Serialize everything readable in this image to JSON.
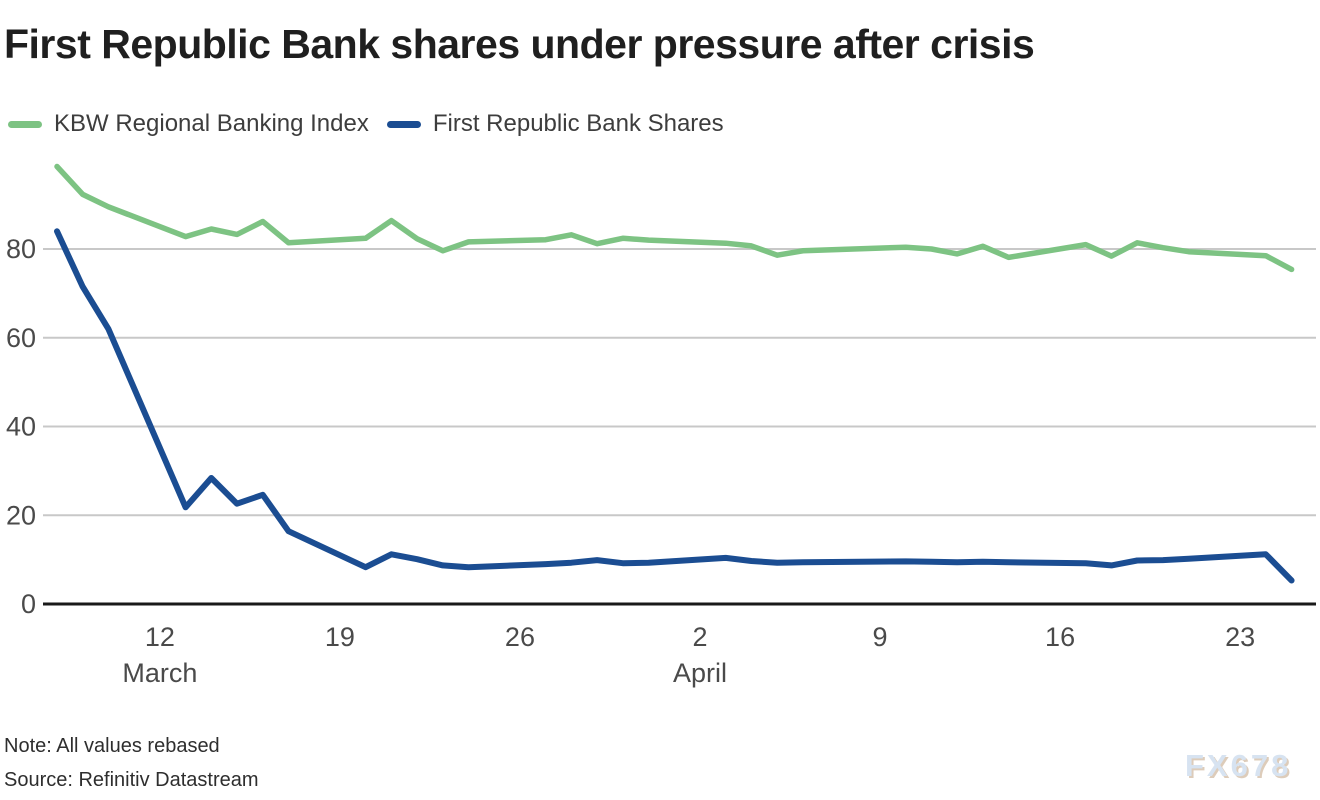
{
  "title": "First Republic Bank shares under pressure after crisis",
  "legend": {
    "items": [
      {
        "label": "KBW Regional Banking Index",
        "color": "#7dc383"
      },
      {
        "label": "First Republic Bank Shares",
        "color": "#1b4d92"
      }
    ]
  },
  "footer": {
    "note": "Note: All values rebased",
    "source": "Source: Refinitiv Datastream"
  },
  "watermark": "FX678",
  "colors": {
    "grid": "#c8c8c8",
    "baseline": "#1a1a1a",
    "axis_text": "#4a4a4a",
    "title_text": "#1f1f1f"
  },
  "chart_data": {
    "type": "line",
    "title": "First Republic Bank shares under pressure after crisis",
    "xlabel": "",
    "ylabel": "",
    "ylim": [
      0,
      100
    ],
    "grid": "horizontal",
    "legend_position": "top-left",
    "x_dates": [
      "Mar 8",
      "Mar 9",
      "Mar 10",
      "Mar 13",
      "Mar 14",
      "Mar 15",
      "Mar 16",
      "Mar 17",
      "Mar 20",
      "Mar 21",
      "Mar 22",
      "Mar 23",
      "Mar 24",
      "Mar 27",
      "Mar 28",
      "Mar 29",
      "Mar 30",
      "Mar 31",
      "Apr 3",
      "Apr 4",
      "Apr 5",
      "Apr 6",
      "Apr 10",
      "Apr 11",
      "Apr 12",
      "Apr 13",
      "Apr 14",
      "Apr 17",
      "Apr 18",
      "Apr 19",
      "Apr 20",
      "Apr 21",
      "Apr 24",
      "Apr 25"
    ],
    "day_offsets": [
      0,
      1,
      2,
      5,
      6,
      7,
      8,
      9,
      12,
      13,
      14,
      15,
      16,
      19,
      20,
      21,
      22,
      23,
      26,
      27,
      28,
      29,
      33,
      34,
      35,
      36,
      37,
      40,
      41,
      42,
      43,
      44,
      47,
      48
    ],
    "series": [
      {
        "name": "KBW Regional Banking Index",
        "color": "#7dc383",
        "stroke_width": 5.5,
        "values": [
          98.6,
          92.3,
          89.5,
          82.8,
          84.5,
          83.3,
          86.2,
          81.4,
          82.4,
          86.4,
          82.3,
          79.6,
          81.6,
          82.1,
          83.2,
          81.2,
          82.4,
          82.0,
          81.3,
          80.7,
          78.6,
          79.6,
          80.4,
          80.0,
          78.9,
          80.6,
          78.1,
          81.0,
          78.4,
          81.4,
          80.3,
          79.4,
          78.5,
          75.4
        ]
      },
      {
        "name": "First Republic Bank Shares",
        "color": "#1b4d92",
        "stroke_width": 6,
        "values": [
          84.0,
          71.5,
          62.0,
          21.8,
          28.4,
          22.6,
          24.6,
          16.4,
          8.3,
          11.2,
          10.1,
          8.7,
          8.3,
          9.0,
          9.3,
          9.9,
          9.2,
          9.3,
          10.4,
          9.7,
          9.3,
          9.4,
          9.6,
          9.5,
          9.4,
          9.5,
          9.4,
          9.2,
          8.7,
          9.8,
          9.9,
          10.2,
          11.2,
          5.3
        ]
      }
    ],
    "y_ticks": [
      0,
      20,
      40,
      60,
      80
    ],
    "x_ticks": [
      {
        "label": "12",
        "day": 4
      },
      {
        "label": "19",
        "day": 11
      },
      {
        "label": "26",
        "day": 18
      },
      {
        "label": "2",
        "day": 25
      },
      {
        "label": "9",
        "day": 32
      },
      {
        "label": "16",
        "day": 39
      },
      {
        "label": "23",
        "day": 46
      }
    ],
    "month_labels": [
      {
        "label": "March",
        "day": 4
      },
      {
        "label": "April",
        "day": 25
      }
    ]
  }
}
